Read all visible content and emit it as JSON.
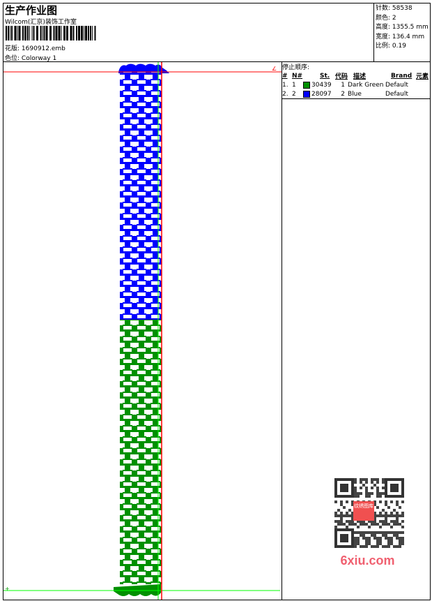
{
  "header": {
    "title": "生产作业图",
    "company": "Wilcom(汇京)装饰工作室",
    "design_label": "花版:",
    "design_file": "1690912.emb",
    "colorway_label": "色位:",
    "colorway": "Colorway 1"
  },
  "info": [
    {
      "label": "针数:",
      "value": "58538"
    },
    {
      "label": "颜色:",
      "value": "2"
    },
    {
      "label": "高度:",
      "value": "1355.5 mm"
    },
    {
      "label": "宽度:",
      "value": "136.4 mm"
    },
    {
      "label": "比例:",
      "value": "0.19"
    }
  ],
  "stop_sequence": {
    "title": "停止顺序:",
    "columns": [
      "#",
      "N#",
      "St.",
      "代码",
      "描述",
      "Brand",
      "元素"
    ],
    "rows": [
      {
        "idx": "1.",
        "n": "1",
        "color": "#009000",
        "st": "30439",
        "code": "1",
        "desc": "Dark Green",
        "brand": "Default"
      },
      {
        "idx": "2.",
        "n": "2",
        "color": "#0000ff",
        "st": "28097",
        "code": "2",
        "desc": "Blue",
        "brand": "Default"
      }
    ]
  },
  "preview": {
    "start_mark": "∠",
    "end_mark": "+",
    "colors": {
      "blue": "#0000ff",
      "green": "#009000",
      "red": "#ff0000",
      "lime": "#00ff00"
    }
  },
  "watermark": {
    "text": "6xiu.com",
    "qr_center": "纹绣图库"
  }
}
